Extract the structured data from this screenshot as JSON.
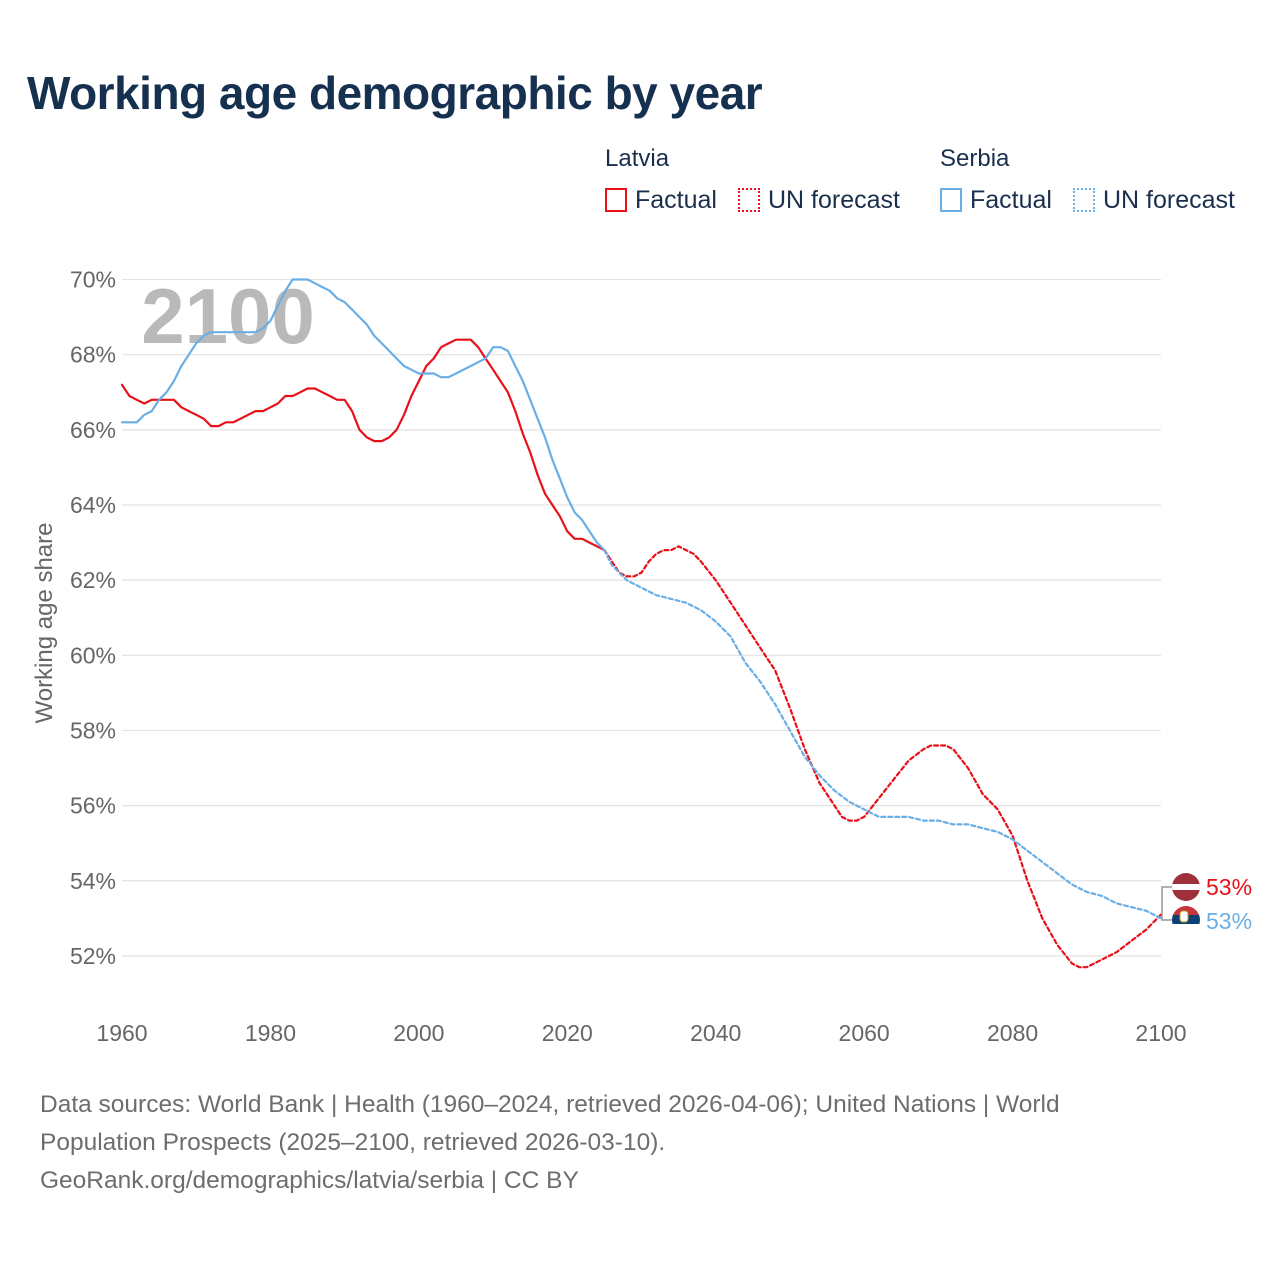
{
  "title": "Working age demographic by year",
  "legend": {
    "groups": [
      {
        "name": "Latvia",
        "factual_label": "Factual",
        "forecast_label": "UN forecast",
        "color": "#e8111a"
      },
      {
        "name": "Serbia",
        "factual_label": "Factual",
        "forecast_label": "UN forecast",
        "color": "#6aaee6"
      }
    ]
  },
  "chart_data": {
    "type": "line",
    "title": "Working age demographic by year",
    "ylabel": "Working age share",
    "xlabel": "",
    "xlim": [
      1960,
      2100
    ],
    "ylim": [
      50.8,
      70.6
    ],
    "x_ticks": [
      1960,
      1980,
      2000,
      2020,
      2040,
      2060,
      2080,
      2100
    ],
    "y_ticks": [
      52,
      54,
      56,
      58,
      60,
      62,
      64,
      66,
      68,
      70
    ],
    "y_tick_labels": [
      "52%",
      "54%",
      "56%",
      "58%",
      "60%",
      "62%",
      "64%",
      "66%",
      "68%",
      "70%"
    ],
    "year_watermark": "2100",
    "grid": "horizontal",
    "series": [
      {
        "name": "Latvia",
        "kind": "Factual",
        "color": "#e8111a",
        "dash": "solid",
        "points": [
          [
            1960,
            67.2
          ],
          [
            1961,
            66.9
          ],
          [
            1962,
            66.8
          ],
          [
            1963,
            66.7
          ],
          [
            1964,
            66.8
          ],
          [
            1965,
            66.8
          ],
          [
            1966,
            66.8
          ],
          [
            1967,
            66.8
          ],
          [
            1968,
            66.6
          ],
          [
            1969,
            66.5
          ],
          [
            1970,
            66.4
          ],
          [
            1971,
            66.3
          ],
          [
            1972,
            66.1
          ],
          [
            1973,
            66.1
          ],
          [
            1974,
            66.2
          ],
          [
            1975,
            66.2
          ],
          [
            1976,
            66.3
          ],
          [
            1977,
            66.4
          ],
          [
            1978,
            66.5
          ],
          [
            1979,
            66.5
          ],
          [
            1980,
            66.6
          ],
          [
            1981,
            66.7
          ],
          [
            1982,
            66.9
          ],
          [
            1983,
            66.9
          ],
          [
            1984,
            67.0
          ],
          [
            1985,
            67.1
          ],
          [
            1986,
            67.1
          ],
          [
            1987,
            67.0
          ],
          [
            1988,
            66.9
          ],
          [
            1989,
            66.8
          ],
          [
            1990,
            66.8
          ],
          [
            1991,
            66.5
          ],
          [
            1992,
            66.0
          ],
          [
            1993,
            65.8
          ],
          [
            1994,
            65.7
          ],
          [
            1995,
            65.7
          ],
          [
            1996,
            65.8
          ],
          [
            1997,
            66.0
          ],
          [
            1998,
            66.4
          ],
          [
            1999,
            66.9
          ],
          [
            2000,
            67.3
          ],
          [
            2001,
            67.7
          ],
          [
            2002,
            67.9
          ],
          [
            2003,
            68.2
          ],
          [
            2004,
            68.3
          ],
          [
            2005,
            68.4
          ],
          [
            2006,
            68.4
          ],
          [
            2007,
            68.4
          ],
          [
            2008,
            68.2
          ],
          [
            2009,
            67.9
          ],
          [
            2010,
            67.6
          ],
          [
            2011,
            67.3
          ],
          [
            2012,
            67.0
          ],
          [
            2013,
            66.5
          ],
          [
            2014,
            65.9
          ],
          [
            2015,
            65.4
          ],
          [
            2016,
            64.8
          ],
          [
            2017,
            64.3
          ],
          [
            2018,
            64.0
          ],
          [
            2019,
            63.7
          ],
          [
            2020,
            63.3
          ],
          [
            2021,
            63.1
          ],
          [
            2022,
            63.1
          ],
          [
            2023,
            63.0
          ],
          [
            2024,
            62.9
          ],
          [
            2025,
            62.8
          ]
        ]
      },
      {
        "name": "Latvia",
        "kind": "UN forecast",
        "color": "#e8111a",
        "dash": "dotted",
        "points": [
          [
            2025,
            62.8
          ],
          [
            2026,
            62.5
          ],
          [
            2027,
            62.2
          ],
          [
            2028,
            62.1
          ],
          [
            2029,
            62.1
          ],
          [
            2030,
            62.2
          ],
          [
            2031,
            62.5
          ],
          [
            2032,
            62.7
          ],
          [
            2033,
            62.8
          ],
          [
            2034,
            62.8
          ],
          [
            2035,
            62.9
          ],
          [
            2036,
            62.8
          ],
          [
            2037,
            62.7
          ],
          [
            2038,
            62.5
          ],
          [
            2040,
            62.0
          ],
          [
            2042,
            61.4
          ],
          [
            2044,
            60.8
          ],
          [
            2046,
            60.2
          ],
          [
            2048,
            59.6
          ],
          [
            2050,
            58.6
          ],
          [
            2052,
            57.5
          ],
          [
            2054,
            56.6
          ],
          [
            2056,
            56.0
          ],
          [
            2057,
            55.7
          ],
          [
            2058,
            55.6
          ],
          [
            2059,
            55.6
          ],
          [
            2060,
            55.7
          ],
          [
            2062,
            56.2
          ],
          [
            2064,
            56.7
          ],
          [
            2066,
            57.2
          ],
          [
            2068,
            57.5
          ],
          [
            2069,
            57.6
          ],
          [
            2070,
            57.6
          ],
          [
            2071,
            57.6
          ],
          [
            2072,
            57.5
          ],
          [
            2074,
            57.0
          ],
          [
            2076,
            56.3
          ],
          [
            2078,
            55.9
          ],
          [
            2080,
            55.2
          ],
          [
            2082,
            54.0
          ],
          [
            2084,
            53.0
          ],
          [
            2086,
            52.3
          ],
          [
            2088,
            51.8
          ],
          [
            2089,
            51.7
          ],
          [
            2090,
            51.7
          ],
          [
            2092,
            51.9
          ],
          [
            2094,
            52.1
          ],
          [
            2096,
            52.4
          ],
          [
            2098,
            52.7
          ],
          [
            2100,
            53.1
          ]
        ]
      },
      {
        "name": "Serbia",
        "kind": "Factual",
        "color": "#6aaee6",
        "dash": "solid",
        "points": [
          [
            1960,
            66.2
          ],
          [
            1961,
            66.2
          ],
          [
            1962,
            66.2
          ],
          [
            1963,
            66.4
          ],
          [
            1964,
            66.5
          ],
          [
            1965,
            66.8
          ],
          [
            1966,
            67.0
          ],
          [
            1967,
            67.3
          ],
          [
            1968,
            67.7
          ],
          [
            1969,
            68.0
          ],
          [
            1970,
            68.3
          ],
          [
            1971,
            68.5
          ],
          [
            1972,
            68.6
          ],
          [
            1973,
            68.6
          ],
          [
            1974,
            68.6
          ],
          [
            1975,
            68.6
          ],
          [
            1976,
            68.6
          ],
          [
            1977,
            68.6
          ],
          [
            1978,
            68.6
          ],
          [
            1979,
            68.7
          ],
          [
            1980,
            68.9
          ],
          [
            1981,
            69.3
          ],
          [
            1982,
            69.7
          ],
          [
            1983,
            70.0
          ],
          [
            1984,
            70.0
          ],
          [
            1985,
            70.0
          ],
          [
            1986,
            69.9
          ],
          [
            1987,
            69.8
          ],
          [
            1988,
            69.7
          ],
          [
            1989,
            69.5
          ],
          [
            1990,
            69.4
          ],
          [
            1991,
            69.2
          ],
          [
            1992,
            69.0
          ],
          [
            1993,
            68.8
          ],
          [
            1994,
            68.5
          ],
          [
            1995,
            68.3
          ],
          [
            1996,
            68.1
          ],
          [
            1997,
            67.9
          ],
          [
            1998,
            67.7
          ],
          [
            1999,
            67.6
          ],
          [
            2000,
            67.5
          ],
          [
            2001,
            67.5
          ],
          [
            2002,
            67.5
          ],
          [
            2003,
            67.4
          ],
          [
            2004,
            67.4
          ],
          [
            2005,
            67.5
          ],
          [
            2006,
            67.6
          ],
          [
            2007,
            67.7
          ],
          [
            2008,
            67.8
          ],
          [
            2009,
            67.9
          ],
          [
            2010,
            68.2
          ],
          [
            2011,
            68.2
          ],
          [
            2012,
            68.1
          ],
          [
            2013,
            67.7
          ],
          [
            2014,
            67.3
          ],
          [
            2015,
            66.8
          ],
          [
            2016,
            66.3
          ],
          [
            2017,
            65.8
          ],
          [
            2018,
            65.2
          ],
          [
            2019,
            64.7
          ],
          [
            2020,
            64.2
          ],
          [
            2021,
            63.8
          ],
          [
            2022,
            63.6
          ],
          [
            2023,
            63.3
          ],
          [
            2024,
            63.0
          ],
          [
            2025,
            62.8
          ]
        ]
      },
      {
        "name": "Serbia",
        "kind": "UN forecast",
        "color": "#6aaee6",
        "dash": "dotted",
        "points": [
          [
            2025,
            62.8
          ],
          [
            2026,
            62.4
          ],
          [
            2028,
            62.0
          ],
          [
            2030,
            61.8
          ],
          [
            2032,
            61.6
          ],
          [
            2034,
            61.5
          ],
          [
            2036,
            61.4
          ],
          [
            2038,
            61.2
          ],
          [
            2040,
            60.9
          ],
          [
            2042,
            60.5
          ],
          [
            2044,
            59.8
          ],
          [
            2046,
            59.3
          ],
          [
            2048,
            58.7
          ],
          [
            2050,
            58.0
          ],
          [
            2052,
            57.3
          ],
          [
            2054,
            56.8
          ],
          [
            2056,
            56.4
          ],
          [
            2058,
            56.1
          ],
          [
            2060,
            55.9
          ],
          [
            2062,
            55.7
          ],
          [
            2064,
            55.7
          ],
          [
            2066,
            55.7
          ],
          [
            2068,
            55.6
          ],
          [
            2070,
            55.6
          ],
          [
            2072,
            55.5
          ],
          [
            2074,
            55.5
          ],
          [
            2076,
            55.4
          ],
          [
            2078,
            55.3
          ],
          [
            2080,
            55.1
          ],
          [
            2082,
            54.8
          ],
          [
            2084,
            54.5
          ],
          [
            2086,
            54.2
          ],
          [
            2088,
            53.9
          ],
          [
            2090,
            53.7
          ],
          [
            2092,
            53.6
          ],
          [
            2094,
            53.4
          ],
          [
            2096,
            53.3
          ],
          [
            2098,
            53.2
          ],
          [
            2100,
            53.0
          ]
        ]
      }
    ],
    "end_labels": [
      {
        "country": "Latvia",
        "label": "53%",
        "color": "#e8111a",
        "value": 53.1
      },
      {
        "country": "Serbia",
        "label": "53%",
        "color": "#6aaee6",
        "value": 53.0
      }
    ]
  },
  "sources": {
    "line1": "Data sources: World Bank | Health (1960–2024, retrieved 2026-04-06); United Nations | World",
    "line2": "Population Prospects (2025–2100, retrieved 2026-03-10).",
    "line3": "GeoRank.org/demographics/latvia/serbia | CC BY"
  }
}
